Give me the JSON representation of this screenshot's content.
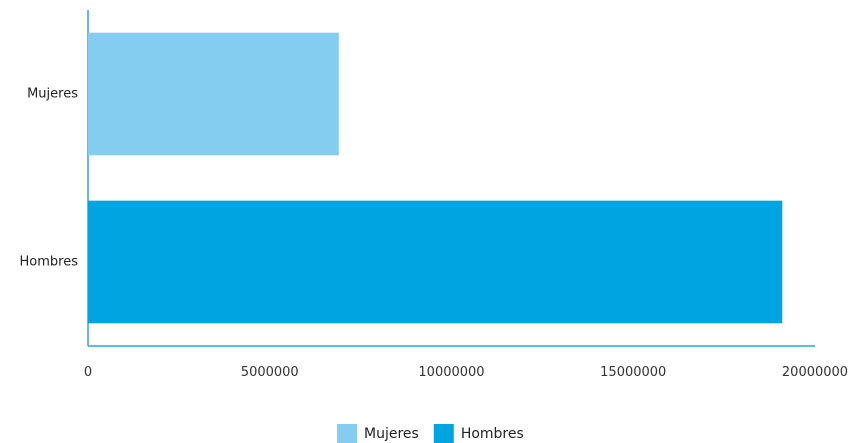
{
  "chart_data": {
    "type": "bar",
    "orientation": "horizontal",
    "categories": [
      "Mujeres",
      "Hombres"
    ],
    "values": [
      6900000,
      19100000
    ],
    "colors": [
      "#85cdf0",
      "#00a4e0"
    ],
    "xlim": [
      0,
      20000000
    ],
    "xticks": [
      "0",
      "5000000",
      "10000000",
      "15000000",
      "20000000"
    ],
    "grid": false,
    "legend": {
      "position": "bottom",
      "entries": [
        {
          "label": "Mujeres",
          "color": "#85cdf0"
        },
        {
          "label": "Hombres",
          "color": "#00a4e0"
        }
      ]
    },
    "axis_color": "#2aa6df"
  }
}
